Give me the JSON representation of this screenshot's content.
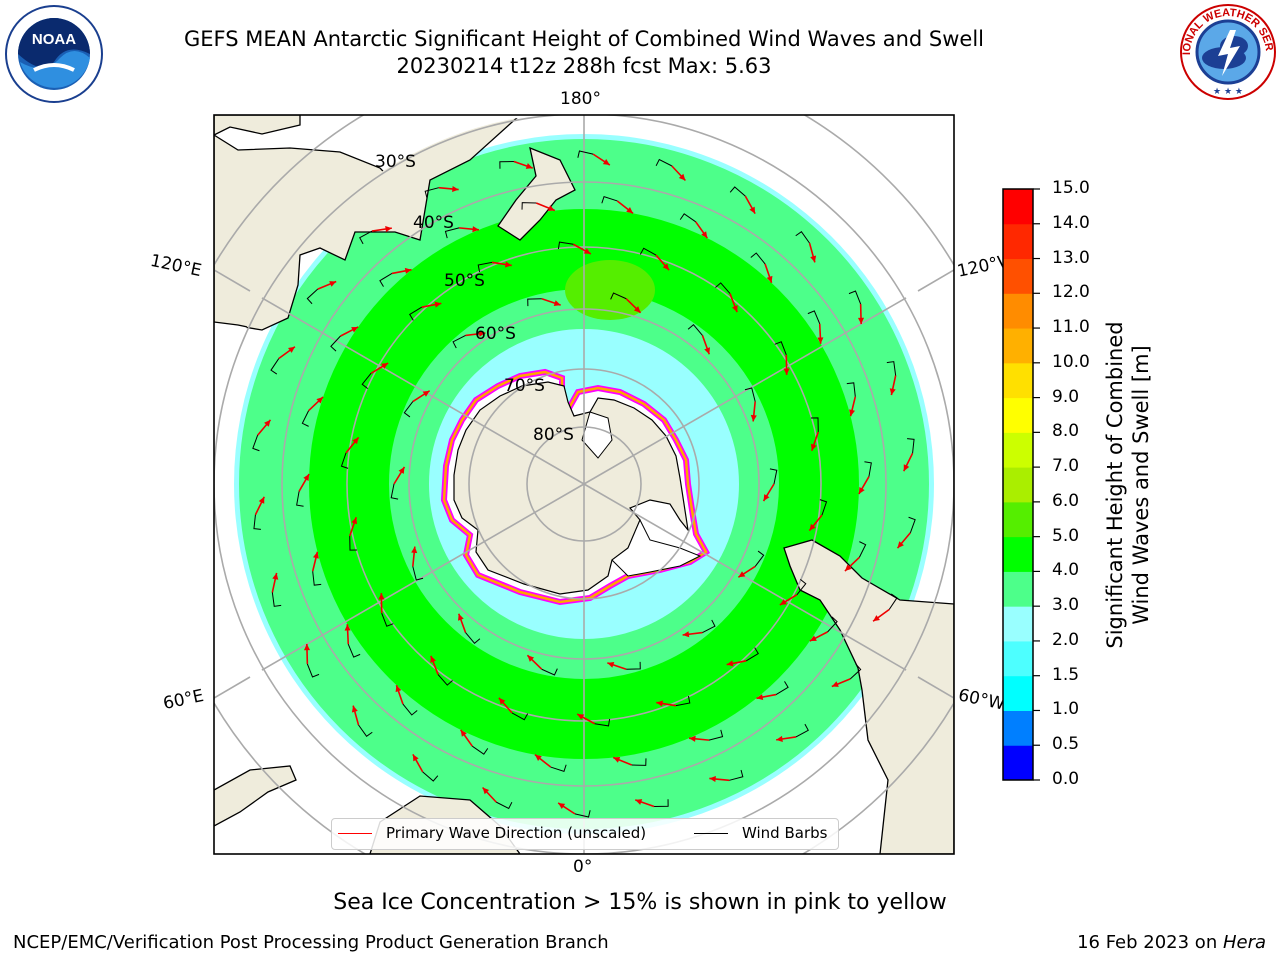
{
  "title": {
    "line1": "GEFS MEAN Antarctic Significant Height of Combined Wind Waves and Swell",
    "line2": "20230214 t12z 288h fcst   Max: 5.63"
  },
  "logos": {
    "left": "NOAA",
    "right": "NATIONAL WEATHER SERVICE"
  },
  "map": {
    "projection": "south polar stereographic",
    "lon_labels": [
      "180°",
      "120°E",
      "120°W",
      "60°E",
      "60°W",
      "0°"
    ],
    "lat_labels": [
      "30°S",
      "40°S",
      "50°S",
      "60°S",
      "70°S",
      "80°S"
    ],
    "land_color": "#efecdc",
    "ice_colors": [
      "#ff00ff",
      "#ffa500",
      "#ffff00"
    ]
  },
  "legend": {
    "wave_dir": "Primary Wave Direction (unscaled)",
    "wind_barbs": "Wind Barbs",
    "wave_dir_color": "#ff0000",
    "wind_barbs_color": "#000000"
  },
  "colorbar": {
    "title_line1": "Significant Height of Combined",
    "title_line2": "Wind Waves and Swell [m]",
    "ticks": [
      "0.0",
      "0.5",
      "1.0",
      "1.5",
      "2.0",
      "3.0",
      "4.0",
      "5.0",
      "6.0",
      "7.0",
      "8.0",
      "9.0",
      "10.0",
      "11.0",
      "12.0",
      "13.0",
      "14.0",
      "15.0"
    ],
    "colors": [
      "#0000ff",
      "#007fff",
      "#00ffff",
      "#4dffff",
      "#99ffff",
      "#4dff8a",
      "#00ff00",
      "#55ee00",
      "#aaee00",
      "#ccff00",
      "#ffff00",
      "#ffe000",
      "#ffb000",
      "#ff8c00",
      "#ff5000",
      "#ff2800",
      "#ff0000"
    ]
  },
  "chart_data": {
    "type": "heatmap",
    "variable": "Significant Height of Combined Wind Waves and Swell",
    "units": "m",
    "max": 5.63,
    "levels": [
      0.0,
      0.5,
      1.0,
      1.5,
      2.0,
      3.0,
      4.0,
      5.0,
      6.0,
      7.0,
      8.0,
      9.0,
      10.0,
      11.0,
      12.0,
      13.0,
      14.0,
      15.0
    ]
  },
  "footer": {
    "note": "Sea Ice Concentration > 15% is shown in pink to yellow",
    "credit_left": "NCEP/EMC/Verification Post Processing Product Generation Branch",
    "date": "16 Feb 2023 on ",
    "machine": "Hera"
  }
}
